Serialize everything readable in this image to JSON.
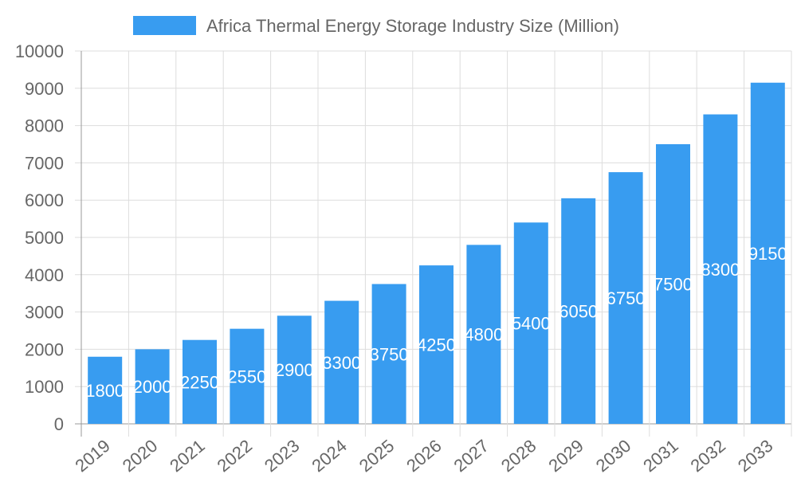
{
  "chart_data": {
    "type": "bar",
    "title": "",
    "legend": {
      "position": "top",
      "entries": [
        "Africa Thermal Energy Storage Industry Size (Million)"
      ]
    },
    "series": [
      {
        "name": "Africa Thermal Energy Storage Industry Size (Million)",
        "values": [
          1800,
          2000,
          2250,
          2550,
          2900,
          3300,
          3750,
          4250,
          4800,
          5400,
          6050,
          6750,
          7500,
          8300,
          9150
        ],
        "color": "#389cf0"
      }
    ],
    "categories": [
      "2019",
      "2020",
      "2021",
      "2022",
      "2023",
      "2024",
      "2025",
      "2026",
      "2027",
      "2028",
      "2029",
      "2030",
      "2031",
      "2032",
      "2033"
    ],
    "yticks": [
      0,
      1000,
      2000,
      3000,
      4000,
      5000,
      6000,
      7000,
      8000,
      9000,
      10000
    ],
    "ylim": [
      0,
      10000
    ],
    "xlabel": "",
    "ylabel": "",
    "grid": true,
    "data_labels": true
  }
}
